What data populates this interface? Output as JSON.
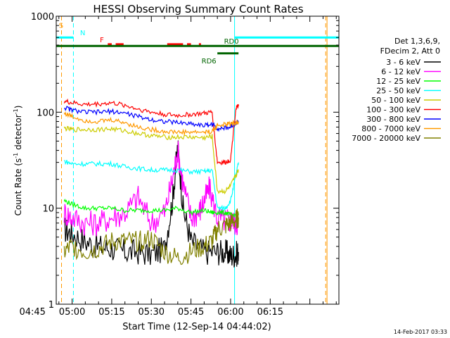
{
  "chart_data": {
    "type": "line",
    "title": "HESSI Observing Summary Count Rates",
    "xlabel": "Start Time (12-Sep-14 04:44:02)",
    "ylabel": "Count Rate (s⁻¹ detector⁻¹)",
    "ylabel_parts": {
      "base": "Count Rate (s",
      "sup1": "-1",
      "mid": " detector",
      "sup2": "-1",
      "end": ")"
    },
    "yscale": "log",
    "ylim": [
      1,
      1000
    ],
    "xlim_minutes": [
      -6,
      101
    ],
    "x_ticks": [
      {
        "label": "04:45",
        "minute": -15
      },
      {
        "label": "05:00",
        "minute": 0
      },
      {
        "label": "05:15",
        "minute": 15
      },
      {
        "label": "05:30",
        "minute": 30
      },
      {
        "label": "05:45",
        "minute": 45
      },
      {
        "label": "06:00",
        "minute": 60
      },
      {
        "label": "06:15",
        "minute": 75
      }
    ],
    "y_ticks": [
      {
        "label": "1",
        "value": 1
      },
      {
        "label": "10",
        "value": 10
      },
      {
        "label": "100",
        "value": 100
      },
      {
        "label": "1000",
        "value": 1000
      }
    ],
    "legend_header": [
      "Det 1,3,6,9,",
      "FDecim 2, Att 0"
    ],
    "legend_placement": "right",
    "timestamp": "14-Feb-2017 03:33",
    "series": [
      {
        "name": "3 - 6 keV",
        "color": "#000000",
        "x": [
          -3,
          0,
          5,
          10,
          15,
          20,
          25,
          30,
          35,
          38,
          40,
          42,
          45,
          50,
          55,
          58,
          60,
          62,
          63
        ],
        "y": [
          6,
          5.5,
          4.5,
          4,
          3.8,
          3.5,
          3.5,
          3.3,
          3.8,
          12,
          45,
          10,
          4.5,
          3.5,
          3.5,
          3.5,
          3.2,
          3.3,
          3.5
        ]
      },
      {
        "name": "6 - 12 keV",
        "color": "#ff00ff",
        "x": [
          -3,
          0,
          5,
          10,
          15,
          20,
          25,
          30,
          35,
          38,
          40,
          42,
          45,
          48,
          50,
          52,
          55,
          58,
          60,
          62,
          63
        ],
        "y": [
          9,
          8,
          7,
          7,
          8,
          9,
          13,
          7,
          9,
          20,
          40,
          18,
          8,
          9,
          12,
          16,
          8,
          7.5,
          7.5,
          7,
          7
        ]
      },
      {
        "name": "12 - 25 keV",
        "color": "#00ff00",
        "x": [
          -3,
          0,
          5,
          10,
          15,
          20,
          25,
          30,
          35,
          40,
          45,
          50,
          53,
          55,
          58,
          60,
          62,
          63
        ],
        "y": [
          12,
          11,
          10,
          10,
          10,
          9.5,
          9.5,
          9.5,
          9.5,
          10,
          9,
          9.5,
          9,
          9,
          9,
          8.5,
          8.5,
          8.5
        ]
      },
      {
        "name": "25 - 50 keV",
        "color": "#00ffff",
        "x": [
          -3,
          0,
          5,
          10,
          15,
          20,
          25,
          30,
          35,
          40,
          45,
          50,
          53,
          55,
          58,
          60,
          62,
          63
        ],
        "y": [
          31,
          29,
          29,
          29,
          29,
          27,
          26,
          25,
          25,
          25,
          24,
          24,
          25,
          10,
          10,
          12,
          22,
          30
        ]
      },
      {
        "name": "50 - 100 keV",
        "color": "#cccc00",
        "x": [
          -3,
          0,
          5,
          10,
          15,
          20,
          25,
          30,
          35,
          40,
          45,
          50,
          53,
          55,
          58,
          60,
          62,
          63
        ],
        "y": [
          68,
          66,
          66,
          66,
          67,
          64,
          60,
          57,
          55,
          55,
          55,
          54,
          56,
          15,
          15,
          17,
          22,
          25
        ]
      },
      {
        "name": "100 - 300 keV",
        "color": "#ff0000",
        "x": [
          -3,
          0,
          5,
          10,
          15,
          20,
          25,
          30,
          35,
          40,
          45,
          50,
          53,
          55,
          58,
          60,
          62,
          63
        ],
        "y": [
          130,
          125,
          120,
          122,
          125,
          118,
          108,
          100,
          95,
          92,
          95,
          97,
          100,
          30,
          30,
          32,
          110,
          115
        ]
      },
      {
        "name": "300 - 800 keV",
        "color": "#0000ff",
        "x": [
          -3,
          0,
          5,
          10,
          15,
          20,
          25,
          30,
          35,
          40,
          45,
          50,
          53,
          55,
          58,
          60,
          62,
          63
        ],
        "y": [
          112,
          105,
          100,
          100,
          102,
          98,
          90,
          84,
          80,
          78,
          76,
          73,
          75,
          68,
          68,
          70,
          78,
          80
        ]
      },
      {
        "name": "800 - 7000 keV",
        "color": "#ff9900",
        "x": [
          -3,
          0,
          5,
          10,
          15,
          20,
          25,
          30,
          35,
          40,
          45,
          50,
          53,
          55,
          58,
          60,
          62,
          63
        ],
        "y": [
          98,
          90,
          82,
          80,
          83,
          78,
          70,
          66,
          63,
          62,
          62,
          62,
          63,
          73,
          74,
          76,
          78,
          78
        ]
      },
      {
        "name": "7000 - 20000 keV",
        "color": "#808000",
        "x": [
          -3,
          0,
          5,
          10,
          15,
          20,
          25,
          30,
          35,
          40,
          45,
          50,
          53,
          55,
          58,
          60,
          62,
          63
        ],
        "y": [
          3.5,
          4,
          3.5,
          3.8,
          4.5,
          4.5,
          4.5,
          4.8,
          3.5,
          3,
          3.5,
          4,
          4.5,
          6,
          6.5,
          7,
          7.5,
          8
        ]
      }
    ],
    "vertical_lines": [
      {
        "minute": -4,
        "color": "#ff9900",
        "dash": true
      },
      {
        "minute": 0.5,
        "color": "#00ffff",
        "dash": true
      },
      {
        "minute": 61.5,
        "color": "#00ffff",
        "dash": false
      },
      {
        "minute": 96,
        "color": "#ff9900",
        "dash": true
      },
      {
        "minute": 96.5,
        "color": "#ff9900",
        "dash": false
      }
    ],
    "flag_bars": [
      {
        "label": "S",
        "label_color": "#ff9900",
        "color": "#ff9900",
        "value": 720,
        "segments": [
          [
            -15,
            -6
          ]
        ],
        "label_at": -5
      },
      {
        "label": "N",
        "label_color": "#00ffff",
        "color": "#00ffff",
        "value": 600,
        "segments": [
          [
            -15,
            0.5
          ],
          [
            61.5,
            101
          ]
        ],
        "label_at": 3
      },
      {
        "label": "F",
        "label_color": "#ff0000",
        "color": "#ff0000",
        "value": 510,
        "segments": [
          [
            13.5,
            15
          ],
          [
            16.5,
            19.5
          ],
          [
            36,
            42
          ],
          [
            43.5,
            45
          ],
          [
            48,
            48.8
          ]
        ],
        "label_at": 10.5
      },
      {
        "label": "RD0",
        "label_color": "#006400",
        "color": "#006400",
        "value": 490,
        "segments": [
          [
            -15,
            101
          ]
        ],
        "label_at": 57.5
      },
      {
        "label": "RD6",
        "label_color": "#006400",
        "color": "#006400",
        "value": 410,
        "segments": [
          [
            55,
            63
          ]
        ],
        "label_at": 49
      }
    ]
  }
}
